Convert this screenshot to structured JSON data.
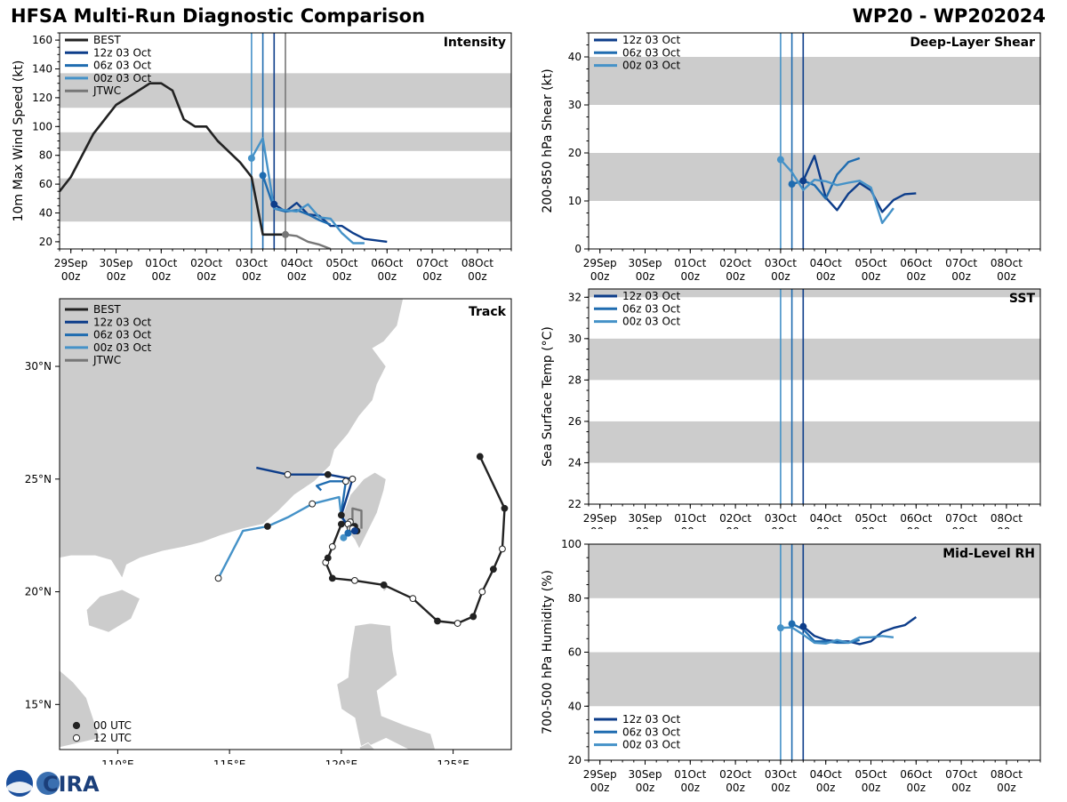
{
  "header": {
    "title_left": "HFSA Multi-Run Diagnostic Comparison",
    "title_right": "WP20 - WP202024"
  },
  "colors": {
    "best": "#222222",
    "run_12z": "#0d3d8a",
    "run_06z": "#1f6cb0",
    "run_00z": "#4592c8",
    "jtwc": "#777777",
    "band": "#cccccc",
    "land": "#cccccc"
  },
  "time_axis": {
    "ticks": [
      {
        "t": 0,
        "top": "29Sep",
        "bottom": "00z"
      },
      {
        "t": 1,
        "top": "30Sep",
        "bottom": "00z"
      },
      {
        "t": 2,
        "top": "01Oct",
        "bottom": "00z"
      },
      {
        "t": 3,
        "top": "02Oct",
        "bottom": "00z"
      },
      {
        "t": 4,
        "top": "03Oct",
        "bottom": "00z"
      },
      {
        "t": 5,
        "top": "04Oct",
        "bottom": "00z"
      },
      {
        "t": 6,
        "top": "05Oct",
        "bottom": "00z"
      },
      {
        "t": 7,
        "top": "06Oct",
        "bottom": "00z"
      },
      {
        "t": 8,
        "top": "07Oct",
        "bottom": "00z"
      },
      {
        "t": 9,
        "top": "08Oct",
        "bottom": "00z"
      }
    ],
    "xlim": [
      -0.25,
      9.75
    ]
  },
  "legend_labels": {
    "best": "BEST",
    "run_12z": "12z 03 Oct",
    "run_06z": "06z 03 Oct",
    "run_00z": "00z 03 Oct",
    "jtwc": "JTWC",
    "utc00": "00 UTC",
    "utc12": "12 UTC"
  },
  "chart_data": [
    {
      "id": "intensity",
      "type": "line",
      "title": "Intensity",
      "ylabel": "10m Max Wind Speed (kt)",
      "ylim": [
        15,
        165
      ],
      "yticks": [
        20,
        40,
        60,
        80,
        100,
        120,
        140,
        160
      ],
      "bands": [
        [
          34,
          64
        ],
        [
          83,
          96
        ],
        [
          113,
          137
        ]
      ],
      "init_lines": [
        {
          "t": 4.0,
          "series": "run_00z"
        },
        {
          "t": 4.25,
          "series": "run_06z"
        },
        {
          "t": 4.5,
          "series": "run_12z"
        },
        {
          "t": 4.75,
          "series": "jtwc"
        }
      ],
      "series": [
        {
          "key": "best",
          "name": "BEST",
          "x": [
            -0.25,
            0,
            0.5,
            1,
            1.5,
            1.75,
            2,
            2.25,
            2.5,
            2.75,
            3,
            3.25,
            3.75,
            4,
            4.25,
            4.5,
            4.75
          ],
          "y": [
            55,
            65,
            95,
            115,
            125,
            130,
            130,
            125,
            105,
            100,
            100,
            90,
            75,
            65,
            25,
            25,
            25
          ]
        },
        {
          "key": "run_12z",
          "name": "12z 03 Oct",
          "x": [
            4.5,
            4.75,
            5,
            5.25,
            5.5,
            5.75,
            6,
            6.25,
            6.5,
            6.75,
            7
          ],
          "y": [
            46,
            41,
            47,
            39,
            38,
            31,
            31,
            26,
            22,
            21,
            20
          ]
        },
        {
          "key": "run_06z",
          "name": "06z 03 Oct",
          "x": [
            4.25,
            4.5,
            4.75,
            5,
            5.25,
            5.5,
            5.75
          ],
          "y": [
            66,
            43,
            41,
            42,
            39,
            35,
            32
          ]
        },
        {
          "key": "run_00z",
          "name": "00z 03 Oct",
          "x": [
            4,
            4.25,
            4.5,
            4.75,
            5,
            5.25,
            5.5,
            5.75,
            6,
            6.25,
            6.5
          ],
          "y": [
            78,
            92,
            43,
            42,
            41,
            46,
            37,
            36,
            26,
            19,
            19
          ]
        },
        {
          "key": "jtwc",
          "name": "JTWC",
          "x": [
            4.75,
            5,
            5.25,
            5.5,
            5.75
          ],
          "y": [
            25,
            24,
            20,
            18,
            15
          ]
        }
      ],
      "markers": [
        {
          "series": "run_00z",
          "x": 4,
          "y": 78
        },
        {
          "series": "run_06z",
          "x": 4.25,
          "y": 66
        },
        {
          "series": "run_12z",
          "x": 4.5,
          "y": 46
        },
        {
          "series": "jtwc",
          "x": 4.75,
          "y": 25
        }
      ]
    },
    {
      "id": "shear",
      "type": "line",
      "title": "Deep-Layer Shear",
      "ylabel": "200-850 hPa Shear (kt)",
      "ylim": [
        0,
        45
      ],
      "yticks": [
        0,
        10,
        20,
        30,
        40
      ],
      "bands": [
        [
          10,
          20
        ],
        [
          30,
          40
        ]
      ],
      "init_lines": [
        {
          "t": 4.0,
          "series": "run_00z"
        },
        {
          "t": 4.25,
          "series": "run_06z"
        },
        {
          "t": 4.5,
          "series": "run_12z"
        }
      ],
      "series": [
        {
          "key": "run_12z",
          "name": "12z 03 Oct",
          "x": [
            4.5,
            4.75,
            5,
            5.25,
            5.5,
            5.75,
            6,
            6.25,
            6.5,
            6.75,
            7
          ],
          "y": [
            14.2,
            19.4,
            10.7,
            8.1,
            11.5,
            13.7,
            12.2,
            7.7,
            10.2,
            11.4,
            11.6
          ]
        },
        {
          "key": "run_06z",
          "name": "06z 03 Oct",
          "x": [
            4.25,
            4.5,
            4.75,
            5,
            5.25,
            5.5,
            5.75
          ],
          "y": [
            13.5,
            14.2,
            13.3,
            10.5,
            15.5,
            18.1,
            18.9
          ]
        },
        {
          "key": "run_00z",
          "name": "00z 03 Oct",
          "x": [
            4,
            4.25,
            4.5,
            4.75,
            5,
            5.25,
            5.5,
            5.75,
            6,
            6.25,
            6.5
          ],
          "y": [
            18.6,
            16.0,
            12.3,
            14.4,
            14.1,
            13.3,
            13.8,
            14.2,
            12.8,
            5.4,
            8.5
          ]
        }
      ],
      "markers": [
        {
          "series": "run_00z",
          "x": 4,
          "y": 18.6
        },
        {
          "series": "run_06z",
          "x": 4.25,
          "y": 13.5
        },
        {
          "series": "run_12z",
          "x": 4.5,
          "y": 14.2
        }
      ]
    },
    {
      "id": "sst",
      "type": "line",
      "title": "SST",
      "ylabel": "Sea Surface Temp (°C)",
      "ylim": [
        22,
        32.4
      ],
      "yticks": [
        22,
        24,
        26,
        28,
        30,
        32
      ],
      "bands": [
        [
          24,
          26
        ],
        [
          28,
          30
        ],
        [
          32,
          33
        ]
      ],
      "init_lines": [
        {
          "t": 4.0,
          "series": "run_00z"
        },
        {
          "t": 4.25,
          "series": "run_06z"
        },
        {
          "t": 4.5,
          "series": "run_12z"
        }
      ],
      "series": [],
      "markers": []
    },
    {
      "id": "rh",
      "type": "line",
      "title": "Mid-Level RH",
      "ylabel": "700-500 hPa Humidity (%)",
      "ylim": [
        20,
        100
      ],
      "yticks": [
        20,
        40,
        60,
        80,
        100
      ],
      "bands": [
        [
          40,
          60
        ],
        [
          80,
          100
        ]
      ],
      "init_lines": [
        {
          "t": 4.0,
          "series": "run_00z"
        },
        {
          "t": 4.25,
          "series": "run_06z"
        },
        {
          "t": 4.5,
          "series": "run_12z"
        }
      ],
      "series": [
        {
          "key": "run_12z",
          "name": "12z 03 Oct",
          "x": [
            4.5,
            4.75,
            5,
            5.25,
            5.5,
            5.75,
            6,
            6.25,
            6.5,
            6.75,
            7
          ],
          "y": [
            69.5,
            66,
            64.5,
            64,
            64,
            63,
            64,
            67.5,
            69,
            70,
            73
          ]
        },
        {
          "key": "run_06z",
          "name": "06z 03 Oct",
          "x": [
            4.25,
            4.5,
            4.75,
            5,
            5.25,
            5.5,
            5.75
          ],
          "y": [
            70.5,
            68.5,
            64,
            64,
            63.5,
            63.5,
            64.5
          ]
        },
        {
          "key": "run_00z",
          "name": "00z 03 Oct",
          "x": [
            4,
            4.25,
            4.5,
            4.75,
            5,
            5.25,
            5.5,
            5.75,
            6,
            6.25,
            6.5
          ],
          "y": [
            69,
            69.2,
            66.5,
            63.5,
            63.2,
            64.5,
            63.5,
            65.5,
            65.5,
            66,
            65.5
          ]
        }
      ],
      "markers": [
        {
          "series": "run_00z",
          "x": 4,
          "y": 69
        },
        {
          "series": "run_06z",
          "x": 4.25,
          "y": 70.5
        },
        {
          "series": "run_12z",
          "x": 4.5,
          "y": 69.5
        }
      ]
    },
    {
      "id": "track",
      "type": "scatter",
      "title": "Track",
      "xlim": [
        107.4,
        127.6
      ],
      "ylim": [
        13.0,
        33.0
      ],
      "xticks": [
        {
          "v": 110,
          "label": "110°E"
        },
        {
          "v": 115,
          "label": "115°E"
        },
        {
          "v": 120,
          "label": "120°E"
        },
        {
          "v": 125,
          "label": "125°E"
        }
      ],
      "yticks": [
        {
          "v": 15,
          "label": "15°N"
        },
        {
          "v": 20,
          "label": "20°N"
        },
        {
          "v": 25,
          "label": "25°N"
        },
        {
          "v": 30,
          "label": "30°N"
        }
      ],
      "series": [
        {
          "key": "best",
          "name": "BEST",
          "points": [
            [
              126.2,
              26.0,
              "00"
            ],
            [
              127.3,
              23.7,
              "00"
            ],
            [
              127.2,
              21.9,
              "12"
            ],
            [
              126.8,
              21.0,
              "00"
            ],
            [
              126.3,
              20.0,
              "12"
            ],
            [
              125.9,
              18.9,
              "00"
            ],
            [
              125.2,
              18.6,
              "12"
            ],
            [
              124.3,
              18.7,
              "00"
            ],
            [
              123.2,
              19.7,
              "12"
            ],
            [
              121.9,
              20.3,
              "00"
            ],
            [
              120.6,
              20.5,
              "12"
            ],
            [
              119.6,
              20.6,
              "00"
            ],
            [
              119.3,
              21.3,
              "12"
            ],
            [
              119.4,
              21.5,
              "00"
            ],
            [
              119.6,
              22.0,
              "12"
            ],
            [
              120.0,
              23.0,
              "00"
            ],
            [
              120.4,
              23.1,
              "12"
            ],
            [
              120.6,
              22.9,
              "00"
            ]
          ]
        },
        {
          "key": "run_12z",
          "name": "12z 03 Oct",
          "points": [
            [
              120.7,
              22.7,
              "00"
            ],
            [
              120.5,
              22.8,
              "12"
            ],
            [
              120.2,
              23.0,
              "none"
            ],
            [
              120.0,
              23.4,
              "00"
            ],
            [
              120.5,
              25.0,
              "12"
            ],
            [
              119.4,
              25.2,
              "00"
            ],
            [
              117.6,
              25.2,
              "12"
            ],
            [
              116.2,
              25.5,
              "none"
            ]
          ]
        },
        {
          "key": "run_06z",
          "name": "06z 03 Oct",
          "points": [
            [
              120.6,
              22.7,
              "00"
            ],
            [
              120.4,
              22.8,
              "12"
            ],
            [
              120.1,
              23.2,
              "none"
            ],
            [
              120.0,
              23.5,
              "none"
            ],
            [
              120.2,
              24.9,
              "12"
            ],
            [
              119.5,
              24.9,
              "none"
            ],
            [
              118.9,
              24.7,
              "none"
            ],
            [
              119.1,
              24.5,
              "none"
            ]
          ]
        },
        {
          "key": "run_00z",
          "name": "00z 03 Oct",
          "points": [
            [
              120.5,
              22.8,
              "00"
            ],
            [
              120.3,
              23.0,
              "12"
            ],
            [
              120.0,
              23.3,
              "none"
            ],
            [
              119.9,
              24.2,
              "none"
            ],
            [
              118.7,
              23.9,
              "12"
            ],
            [
              117.6,
              23.3,
              "none"
            ],
            [
              116.7,
              22.9,
              "00"
            ],
            [
              115.6,
              22.7,
              "none"
            ],
            [
              114.5,
              20.6,
              "12"
            ]
          ]
        },
        {
          "key": "jtwc",
          "name": "JTWC",
          "points": [
            [
              120.5,
              23.1,
              "none"
            ],
            [
              120.5,
              23.7,
              "none"
            ],
            [
              120.9,
              23.6,
              "none"
            ],
            [
              120.9,
              22.8,
              "none"
            ]
          ]
        }
      ],
      "markers": [
        {
          "series": "run_00z",
          "lon": 120.1,
          "lat": 22.4
        },
        {
          "series": "run_06z",
          "lon": 120.3,
          "lat": 22.6
        },
        {
          "series": "run_12z",
          "lon": 120.6,
          "lat": 22.7
        }
      ]
    }
  ],
  "logo": {
    "text": "CIRA"
  }
}
